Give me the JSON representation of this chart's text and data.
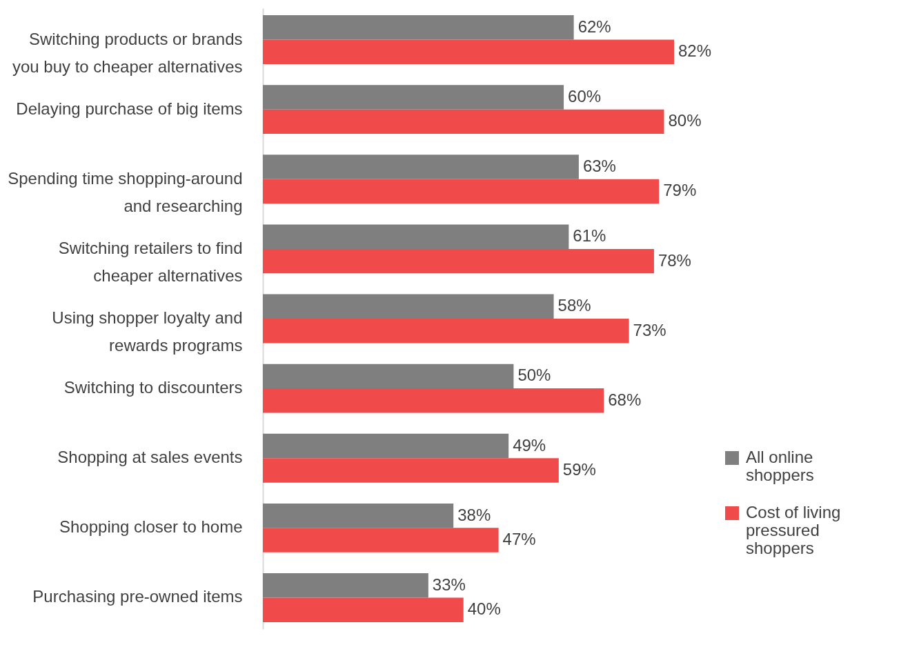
{
  "chart_data": {
    "type": "bar",
    "orientation": "horizontal",
    "categories": [
      "Switching products or brands you buy to cheaper alternatives",
      "Delaying purchase of big items",
      "Spending time shopping-around and researching",
      "Switching retailers to find cheaper alternatives",
      "Using shopper loyalty and rewards programs",
      "Switching to discounters",
      "Shopping at sales events",
      "Shopping closer to home",
      "Purchasing pre-owned items"
    ],
    "series": [
      {
        "name": "All online shoppers",
        "color": "#7f7f7f",
        "values": [
          62,
          60,
          63,
          61,
          58,
          50,
          49,
          38,
          33
        ],
        "value_labels": [
          "62%",
          "60%",
          "63%",
          "61%",
          "58%",
          "50%",
          "49%",
          "38%",
          "33%"
        ]
      },
      {
        "name": "Cost of living pressured shoppers",
        "color": "#f04a4a",
        "values": [
          82,
          80,
          79,
          78,
          73,
          68,
          59,
          47,
          40
        ],
        "value_labels": [
          "82%",
          "80%",
          "79%",
          "78%",
          "73%",
          "68%",
          "59%",
          "47%",
          "40%"
        ]
      }
    ],
    "legend": "right",
    "grid": false
  }
}
